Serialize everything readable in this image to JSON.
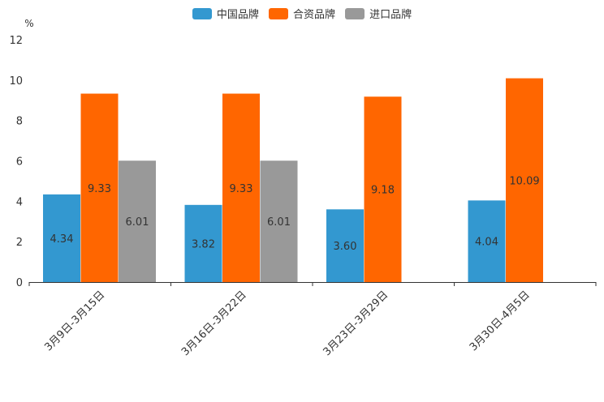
{
  "chart_data": {
    "type": "bar",
    "title": "",
    "xlabel": "",
    "ylabel": "%",
    "ylim": [
      0,
      12
    ],
    "yticks": [
      0,
      2,
      4,
      6,
      8,
      10,
      12
    ],
    "grid": false,
    "legend_position": "top-center",
    "categories": [
      "3月9日-3月15日",
      "3月16日-3月22日",
      "3月23日-3月29日",
      "3月30日-4月5日"
    ],
    "series": [
      {
        "name": "中国品牌",
        "color": "#3398d0",
        "values": [
          4.34,
          3.82,
          3.6,
          4.04
        ],
        "labels": [
          "4.34",
          "3.82",
          "3.60",
          "4.04"
        ]
      },
      {
        "name": "合资品牌",
        "color": "#ff6600",
        "values": [
          9.33,
          9.33,
          9.18,
          10.09
        ],
        "labels": [
          "9.33",
          "9.33",
          "9.18",
          "10.09"
        ]
      },
      {
        "name": "进口品牌",
        "color": "#999999",
        "values": [
          6.01,
          6.01,
          null,
          null
        ],
        "labels": [
          "6.01",
          "6.01",
          "",
          ""
        ]
      }
    ]
  }
}
